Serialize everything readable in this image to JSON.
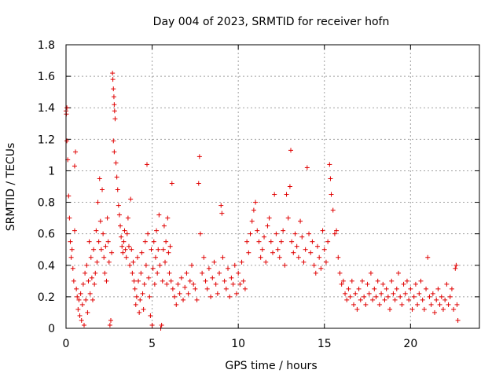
{
  "chart_data": {
    "type": "scatter",
    "title": "Day 004 of 2023, SRMTID for receiver hofn",
    "xlabel": "GPS time / hours",
    "ylabel": "SRMTID / TECUs",
    "xlim": [
      0,
      24
    ],
    "ylim": [
      0,
      1.8
    ],
    "xticks": [
      0,
      5,
      10,
      15,
      20
    ],
    "xtick_labels": [
      "0",
      "5",
      "10",
      "15",
      "20"
    ],
    "yticks": [
      0,
      0.2,
      0.4,
      0.6,
      0.8,
      1,
      1.2,
      1.4,
      1.6,
      1.8
    ],
    "ytick_labels": [
      "0",
      "0.2",
      "0.4",
      "0.6",
      "0.8",
      "1",
      "1.2",
      "1.4",
      "1.6",
      "1.8"
    ],
    "grid": true,
    "marker": "+",
    "color": "#e00000",
    "series": [
      {
        "name": "SRMTID",
        "points": [
          [
            0.0,
            1.38
          ],
          [
            0.02,
            1.36
          ],
          [
            0.05,
            1.4
          ],
          [
            0.05,
            1.19
          ],
          [
            0.1,
            1.07
          ],
          [
            0.15,
            0.84
          ],
          [
            0.2,
            0.7
          ],
          [
            0.25,
            0.55
          ],
          [
            0.3,
            0.45
          ],
          [
            0.35,
            0.5
          ],
          [
            0.4,
            0.38
          ],
          [
            0.45,
            0.3
          ],
          [
            0.5,
            0.62
          ],
          [
            0.55,
            1.12
          ],
          [
            0.5,
            1.03
          ],
          [
            0.6,
            0.25
          ],
          [
            0.65,
            0.2
          ],
          [
            0.7,
            0.12
          ],
          [
            0.75,
            0.18
          ],
          [
            0.8,
            0.08
          ],
          [
            0.85,
            0.22
          ],
          [
            0.9,
            0.05
          ],
          [
            0.95,
            0.15
          ],
          [
            1.0,
            0.28
          ],
          [
            1.05,
            0.02
          ],
          [
            1.1,
            0.35
          ],
          [
            1.15,
            0.18
          ],
          [
            1.2,
            0.4
          ],
          [
            1.25,
            0.1
          ],
          [
            1.3,
            0.3
          ],
          [
            1.35,
            0.55
          ],
          [
            1.4,
            0.22
          ],
          [
            1.45,
            0.45
          ],
          [
            1.5,
            0.32
          ],
          [
            1.55,
            0.18
          ],
          [
            1.6,
            0.5
          ],
          [
            1.65,
            0.28
          ],
          [
            1.7,
            0.35
          ],
          [
            1.75,
            0.62
          ],
          [
            1.8,
            0.42
          ],
          [
            1.85,
            0.8
          ],
          [
            1.9,
            0.55
          ],
          [
            1.95,
            0.95
          ],
          [
            2.0,
            0.68
          ],
          [
            2.05,
            0.5
          ],
          [
            2.1,
            0.88
          ],
          [
            2.15,
            0.6
          ],
          [
            2.2,
            0.45
          ],
          [
            2.25,
            0.35
          ],
          [
            2.3,
            0.52
          ],
          [
            2.35,
            0.3
          ],
          [
            2.4,
            0.7
          ],
          [
            2.45,
            0.55
          ],
          [
            2.5,
            0.42
          ],
          [
            2.55,
            0.02
          ],
          [
            2.6,
            0.05
          ],
          [
            2.65,
            0.48
          ],
          [
            2.7,
            1.62
          ],
          [
            2.72,
            1.58
          ],
          [
            2.75,
            1.52
          ],
          [
            2.78,
            1.47
          ],
          [
            2.8,
            1.42
          ],
          [
            2.82,
            1.38
          ],
          [
            2.85,
            1.33
          ],
          [
            2.75,
            1.19
          ],
          [
            2.8,
            1.12
          ],
          [
            2.9,
            1.05
          ],
          [
            2.95,
            0.96
          ],
          [
            3.0,
            0.88
          ],
          [
            3.05,
            0.78
          ],
          [
            3.1,
            0.72
          ],
          [
            3.15,
            0.65
          ],
          [
            3.2,
            0.58
          ],
          [
            3.25,
            0.52
          ],
          [
            3.3,
            0.48
          ],
          [
            3.35,
            0.55
          ],
          [
            3.4,
            0.62
          ],
          [
            3.45,
            0.5
          ],
          [
            3.5,
            0.45
          ],
          [
            3.55,
            0.6
          ],
          [
            3.6,
            0.7
          ],
          [
            3.65,
            0.52
          ],
          [
            3.7,
            0.4
          ],
          [
            3.75,
            0.82
          ],
          [
            3.8,
            0.5
          ],
          [
            3.85,
            0.35
          ],
          [
            3.9,
            0.42
          ],
          [
            3.95,
            0.3
          ],
          [
            4.0,
            0.25
          ],
          [
            4.05,
            0.15
          ],
          [
            4.1,
            0.2
          ],
          [
            4.15,
            0.45
          ],
          [
            4.2,
            0.3
          ],
          [
            4.25,
            0.1
          ],
          [
            4.3,
            0.18
          ],
          [
            4.35,
            0.35
          ],
          [
            4.4,
            0.48
          ],
          [
            4.45,
            0.22
          ],
          [
            4.5,
            0.12
          ],
          [
            4.55,
            0.28
          ],
          [
            4.6,
            0.55
          ],
          [
            4.65,
            0.4
          ],
          [
            4.7,
            1.04
          ],
          [
            4.75,
            0.6
          ],
          [
            4.8,
            0.32
          ],
          [
            4.85,
            0.2
          ],
          [
            4.9,
            0.08
          ],
          [
            4.95,
            0.5
          ],
          [
            5.0,
            0.02
          ],
          [
            5.05,
            0.38
          ],
          [
            5.1,
            0.55
          ],
          [
            5.15,
            0.28
          ],
          [
            5.2,
            0.45
          ],
          [
            5.25,
            0.62
          ],
          [
            5.3,
            0.35
          ],
          [
            5.35,
            0.5
          ],
          [
            5.4,
            0.72
          ],
          [
            5.45,
            0.4
          ],
          [
            5.5,
            0.0
          ],
          [
            5.55,
            0.02
          ],
          [
            5.6,
            0.3
          ],
          [
            5.65,
            0.5
          ],
          [
            5.7,
            0.65
          ],
          [
            5.75,
            0.42
          ],
          [
            5.8,
            0.55
          ],
          [
            5.85,
            0.28
          ],
          [
            5.9,
            0.7
          ],
          [
            5.95,
            0.48
          ],
          [
            6.0,
            0.35
          ],
          [
            6.05,
            0.52
          ],
          [
            6.1,
            0.3
          ],
          [
            6.15,
            0.92
          ],
          [
            6.2,
            0.25
          ],
          [
            6.3,
            0.2
          ],
          [
            6.4,
            0.15
          ],
          [
            6.5,
            0.28
          ],
          [
            6.6,
            0.22
          ],
          [
            6.7,
            0.32
          ],
          [
            6.8,
            0.18
          ],
          [
            6.9,
            0.26
          ],
          [
            7.0,
            0.35
          ],
          [
            7.1,
            0.22
          ],
          [
            7.2,
            0.3
          ],
          [
            7.3,
            0.4
          ],
          [
            7.4,
            0.28
          ],
          [
            7.5,
            0.25
          ],
          [
            7.6,
            0.18
          ],
          [
            7.7,
            0.92
          ],
          [
            7.75,
            1.09
          ],
          [
            7.8,
            0.6
          ],
          [
            7.9,
            0.35
          ],
          [
            8.0,
            0.45
          ],
          [
            8.1,
            0.3
          ],
          [
            8.2,
            0.25
          ],
          [
            8.3,
            0.38
          ],
          [
            8.4,
            0.2
          ],
          [
            8.5,
            0.32
          ],
          [
            8.6,
            0.42
          ],
          [
            8.7,
            0.28
          ],
          [
            8.8,
            0.22
          ],
          [
            8.9,
            0.35
          ],
          [
            9.0,
            0.78
          ],
          [
            9.05,
            0.73
          ],
          [
            9.1,
            0.45
          ],
          [
            9.2,
            0.3
          ],
          [
            9.3,
            0.25
          ],
          [
            9.4,
            0.38
          ],
          [
            9.5,
            0.2
          ],
          [
            9.6,
            0.32
          ],
          [
            9.7,
            0.28
          ],
          [
            9.8,
            0.4
          ],
          [
            9.9,
            0.22
          ],
          [
            10.0,
            0.35
          ],
          [
            10.1,
            0.28
          ],
          [
            10.2,
            0.42
          ],
          [
            10.3,
            0.3
          ],
          [
            10.4,
            0.25
          ],
          [
            10.5,
            0.55
          ],
          [
            10.6,
            0.48
          ],
          [
            10.7,
            0.6
          ],
          [
            10.8,
            0.68
          ],
          [
            10.9,
            0.75
          ],
          [
            11.0,
            0.8
          ],
          [
            11.1,
            0.62
          ],
          [
            11.2,
            0.55
          ],
          [
            11.3,
            0.45
          ],
          [
            11.4,
            0.5
          ],
          [
            11.5,
            0.58
          ],
          [
            11.6,
            0.42
          ],
          [
            11.7,
            0.65
          ],
          [
            11.8,
            0.7
          ],
          [
            11.9,
            0.55
          ],
          [
            12.0,
            0.48
          ],
          [
            12.1,
            0.85
          ],
          [
            12.2,
            0.6
          ],
          [
            12.3,
            0.5
          ],
          [
            12.4,
            0.45
          ],
          [
            12.5,
            0.55
          ],
          [
            12.6,
            0.62
          ],
          [
            12.7,
            0.4
          ],
          [
            12.8,
            0.85
          ],
          [
            12.9,
            0.7
          ],
          [
            13.0,
            0.9
          ],
          [
            13.05,
            1.13
          ],
          [
            13.1,
            0.55
          ],
          [
            13.2,
            0.48
          ],
          [
            13.3,
            0.6
          ],
          [
            13.4,
            0.52
          ],
          [
            13.5,
            0.45
          ],
          [
            13.6,
            0.68
          ],
          [
            13.7,
            0.58
          ],
          [
            13.8,
            0.42
          ],
          [
            13.9,
            0.5
          ],
          [
            14.0,
            1.02
          ],
          [
            14.1,
            0.6
          ],
          [
            14.2,
            0.48
          ],
          [
            14.3,
            0.55
          ],
          [
            14.4,
            0.4
          ],
          [
            14.5,
            0.35
          ],
          [
            14.6,
            0.52
          ],
          [
            14.7,
            0.45
          ],
          [
            14.8,
            0.38
          ],
          [
            14.9,
            0.62
          ],
          [
            15.0,
            0.5
          ],
          [
            15.1,
            0.42
          ],
          [
            15.2,
            0.55
          ],
          [
            15.3,
            1.04
          ],
          [
            15.35,
            0.95
          ],
          [
            15.4,
            0.85
          ],
          [
            15.5,
            0.75
          ],
          [
            15.6,
            0.6
          ],
          [
            15.7,
            0.62
          ],
          [
            15.8,
            0.45
          ],
          [
            15.9,
            0.35
          ],
          [
            16.0,
            0.28
          ],
          [
            16.1,
            0.3
          ],
          [
            16.2,
            0.22
          ],
          [
            16.3,
            0.18
          ],
          [
            16.4,
            0.25
          ],
          [
            16.5,
            0.2
          ],
          [
            16.6,
            0.3
          ],
          [
            16.7,
            0.15
          ],
          [
            16.8,
            0.22
          ],
          [
            16.9,
            0.12
          ],
          [
            17.0,
            0.25
          ],
          [
            17.1,
            0.18
          ],
          [
            17.2,
            0.3
          ],
          [
            17.3,
            0.2
          ],
          [
            17.4,
            0.15
          ],
          [
            17.5,
            0.28
          ],
          [
            17.6,
            0.22
          ],
          [
            17.7,
            0.35
          ],
          [
            17.8,
            0.18
          ],
          [
            17.9,
            0.25
          ],
          [
            18.0,
            0.2
          ],
          [
            18.1,
            0.3
          ],
          [
            18.2,
            0.15
          ],
          [
            18.3,
            0.22
          ],
          [
            18.4,
            0.28
          ],
          [
            18.5,
            0.18
          ],
          [
            18.6,
            0.25
          ],
          [
            18.7,
            0.2
          ],
          [
            18.8,
            0.12
          ],
          [
            18.9,
            0.3
          ],
          [
            19.0,
            0.22
          ],
          [
            19.1,
            0.18
          ],
          [
            19.2,
            0.25
          ],
          [
            19.3,
            0.35
          ],
          [
            19.4,
            0.2
          ],
          [
            19.5,
            0.15
          ],
          [
            19.6,
            0.28
          ],
          [
            19.7,
            0.22
          ],
          [
            19.8,
            0.3
          ],
          [
            19.9,
            0.18
          ],
          [
            20.0,
            0.25
          ],
          [
            20.1,
            0.12
          ],
          [
            20.2,
            0.2
          ],
          [
            20.3,
            0.28
          ],
          [
            20.4,
            0.15
          ],
          [
            20.5,
            0.22
          ],
          [
            20.6,
            0.3
          ],
          [
            20.7,
            0.18
          ],
          [
            20.8,
            0.12
          ],
          [
            20.9,
            0.25
          ],
          [
            21.0,
            0.45
          ],
          [
            21.1,
            0.2
          ],
          [
            21.2,
            0.15
          ],
          [
            21.3,
            0.22
          ],
          [
            21.4,
            0.1
          ],
          [
            21.5,
            0.18
          ],
          [
            21.6,
            0.25
          ],
          [
            21.7,
            0.15
          ],
          [
            21.8,
            0.2
          ],
          [
            21.9,
            0.12
          ],
          [
            22.0,
            0.18
          ],
          [
            22.1,
            0.28
          ],
          [
            22.2,
            0.15
          ],
          [
            22.3,
            0.2
          ],
          [
            22.4,
            0.25
          ],
          [
            22.5,
            0.12
          ],
          [
            22.6,
            0.38
          ],
          [
            22.65,
            0.4
          ],
          [
            22.7,
            0.15
          ],
          [
            22.75,
            0.05
          ]
        ]
      }
    ]
  }
}
